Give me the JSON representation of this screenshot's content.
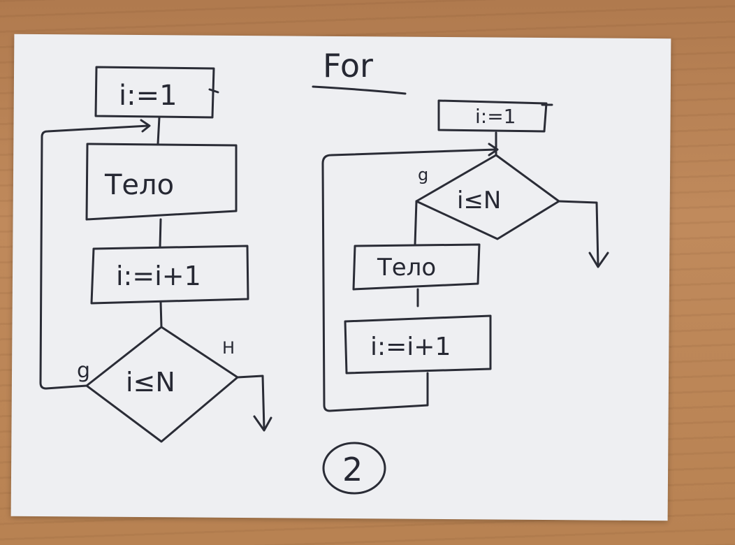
{
  "title": "For",
  "page_number": "2",
  "left_flowchart": {
    "init": "i:=1",
    "body": "Тело",
    "increment": "i:=i+1",
    "condition": "i≤N",
    "yes_label": "g",
    "no_label": "H"
  },
  "right_flowchart": {
    "init": "i:=1",
    "condition": "i≤N",
    "yes_label": "g",
    "body": "Тело",
    "increment": "i:=i+1"
  }
}
